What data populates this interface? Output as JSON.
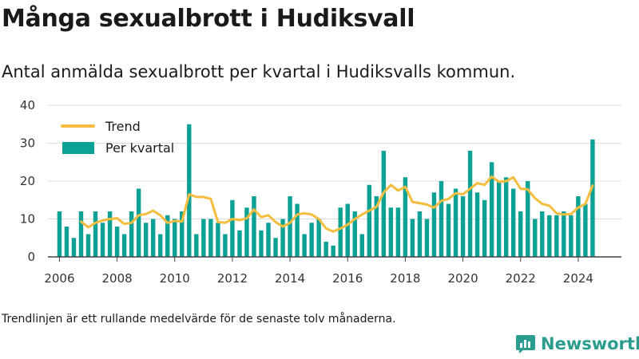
{
  "header": {
    "title": "Många sexualbrott i Hudiksvall",
    "subtitle": "Antal anmälda sexualbrott per kvartal i Hudiksvalls kommun."
  },
  "footnote": "Trendlinjen är ett rullande medelvärde för de senaste tolv månaderna.",
  "brand": {
    "name": "Newsworthy",
    "icon": "newsworthy-logo-icon"
  },
  "colors": {
    "bars": "#0ca195",
    "trend": "#f5bd3e",
    "grid": "#dddddd",
    "axis": "#444444",
    "brand": "#2a9d8f"
  },
  "chart_data": {
    "type": "bar",
    "legend": {
      "placement": "top-left",
      "trend_label": "Trend",
      "bar_label": "Per kvartal"
    },
    "ylim": [
      0,
      40
    ],
    "yticks": [
      0,
      10,
      20,
      30,
      40
    ],
    "xticks": [
      2006,
      2008,
      2010,
      2012,
      2014,
      2016,
      2018,
      2020,
      2022,
      2024
    ],
    "xlim": [
      2005.6,
      2025.5
    ],
    "grid": true,
    "series": [
      {
        "name": "Per kvartal",
        "type": "bar",
        "x": [
          2006.0,
          2006.25,
          2006.5,
          2006.75,
          2007.0,
          2007.25,
          2007.5,
          2007.75,
          2008.0,
          2008.25,
          2008.5,
          2008.75,
          2009.0,
          2009.25,
          2009.5,
          2009.75,
          2010.0,
          2010.25,
          2010.5,
          2010.75,
          2011.0,
          2011.25,
          2011.5,
          2011.75,
          2012.0,
          2012.25,
          2012.5,
          2012.75,
          2013.0,
          2013.25,
          2013.5,
          2013.75,
          2014.0,
          2014.25,
          2014.5,
          2014.75,
          2015.0,
          2015.25,
          2015.5,
          2015.75,
          2016.0,
          2016.25,
          2016.5,
          2016.75,
          2017.0,
          2017.25,
          2017.5,
          2017.75,
          2018.0,
          2018.25,
          2018.5,
          2018.75,
          2019.0,
          2019.25,
          2019.5,
          2019.75,
          2020.0,
          2020.25,
          2020.5,
          2020.75,
          2021.0,
          2021.25,
          2021.5,
          2021.75,
          2022.0,
          2022.25,
          2022.5,
          2022.75,
          2023.0,
          2023.25,
          2023.5,
          2023.75,
          2024.0,
          2024.25,
          2024.5
        ],
        "values": [
          12,
          8,
          5,
          12,
          6,
          12,
          9,
          12,
          8,
          6,
          12,
          18,
          9,
          10,
          6,
          11,
          10,
          12,
          35,
          6,
          10,
          10,
          9,
          6,
          15,
          7,
          13,
          16,
          7,
          9,
          5,
          10,
          16,
          14,
          6,
          9,
          10,
          4,
          3,
          13,
          14,
          12,
          6,
          19,
          16,
          28,
          13,
          13,
          21,
          10,
          12,
          10,
          17,
          20,
          14,
          18,
          16,
          28,
          17,
          15,
          25,
          20,
          21,
          18,
          12,
          20,
          10,
          12,
          11,
          11,
          12,
          11,
          16,
          14,
          31
        ]
      },
      {
        "name": "Trend",
        "type": "line",
        "x": [
          2006.75,
          2007.0,
          2007.25,
          2007.5,
          2007.75,
          2008.0,
          2008.25,
          2008.5,
          2008.75,
          2009.0,
          2009.25,
          2009.5,
          2009.75,
          2010.0,
          2010.25,
          2010.5,
          2010.75,
          2011.0,
          2011.25,
          2011.5,
          2011.75,
          2012.0,
          2012.25,
          2012.5,
          2012.75,
          2013.0,
          2013.25,
          2013.5,
          2013.75,
          2014.0,
          2014.25,
          2014.5,
          2014.75,
          2015.0,
          2015.25,
          2015.5,
          2015.75,
          2016.0,
          2016.25,
          2016.5,
          2016.75,
          2017.0,
          2017.25,
          2017.5,
          2017.75,
          2018.0,
          2018.25,
          2018.5,
          2018.75,
          2019.0,
          2019.25,
          2019.5,
          2019.75,
          2020.0,
          2020.25,
          2020.5,
          2020.75,
          2021.0,
          2021.25,
          2021.5,
          2021.75,
          2022.0,
          2022.25,
          2022.5,
          2022.75,
          2023.0,
          2023.25,
          2023.5,
          2023.75,
          2024.0,
          2024.25,
          2024.5
        ],
        "values": [
          9.3,
          7.8,
          9.0,
          9.6,
          10.0,
          10.2,
          8.7,
          9.0,
          11.0,
          11.3,
          12.2,
          11.0,
          9.0,
          9.5,
          9.3,
          16.5,
          15.8,
          15.8,
          15.3,
          9.2,
          9.0,
          10.0,
          9.7,
          10.2,
          12.5,
          10.5,
          11.0,
          9.2,
          8.0,
          9.0,
          11.2,
          11.5,
          11.2,
          10.0,
          7.5,
          6.7,
          7.5,
          8.5,
          10.0,
          11.2,
          12.2,
          13.2,
          17.0,
          19.0,
          17.5,
          18.5,
          14.5,
          14.2,
          13.8,
          13.0,
          14.8,
          15.3,
          16.8,
          16.5,
          18.0,
          19.5,
          19.0,
          21.2,
          19.8,
          20.0,
          21.0,
          18.0,
          17.8,
          15.5,
          14.0,
          13.5,
          11.5,
          11.2,
          11.3,
          13.0,
          14.0,
          18.8
        ]
      }
    ]
  }
}
